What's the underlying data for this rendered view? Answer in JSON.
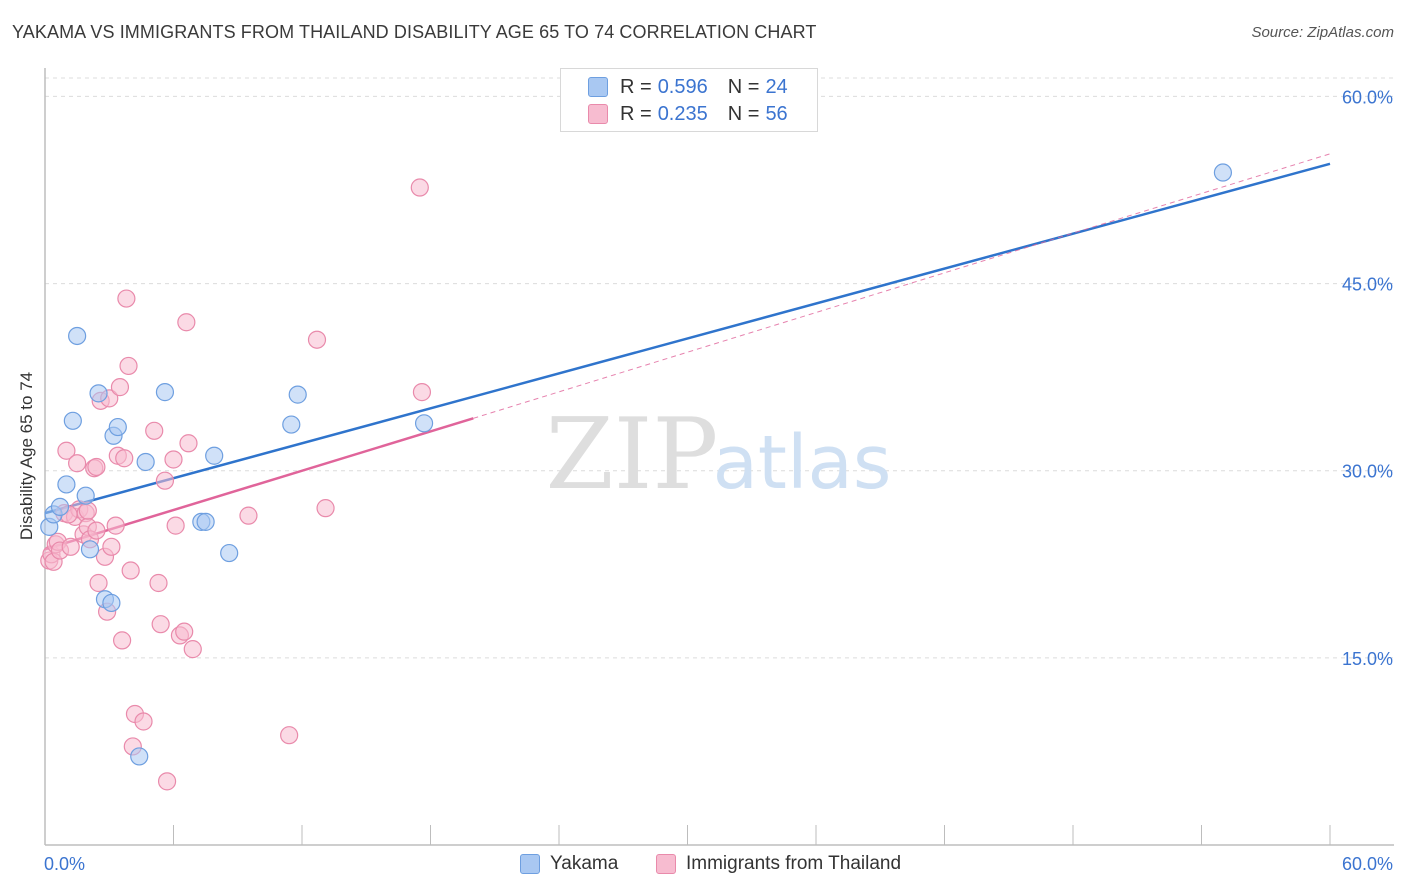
{
  "title": "YAKAMA VS IMMIGRANTS FROM THAILAND DISABILITY AGE 65 TO 74 CORRELATION CHART",
  "source": "Source: ZipAtlas.com",
  "watermark": {
    "zip": "ZIP",
    "atlas": "atlas"
  },
  "legend_top": [
    {
      "r_label": "R =",
      "r_value": "0.596",
      "n_label": "N =",
      "n_value": "24",
      "color": "#a9c8f2",
      "border": "#6e9fe0"
    },
    {
      "r_label": "R =",
      "r_value": "0.235",
      "n_label": "N =",
      "n_value": "56",
      "color": "#f7bcd0",
      "border": "#e98aab"
    }
  ],
  "legend_bottom": [
    {
      "label": "Yakama",
      "color": "#a9c8f2",
      "border": "#6e9fe0"
    },
    {
      "label": "Immigrants from Thailand",
      "color": "#f7bcd0",
      "border": "#e98aab"
    }
  ],
  "chart_data": {
    "type": "scatter",
    "title": "YAKAMA VS IMMIGRANTS FROM THAILAND DISABILITY AGE 65 TO 74 CORRELATION CHART",
    "xlabel": "",
    "ylabel": "Disability Age 65 to 74",
    "xlim": [
      0,
      60
    ],
    "ylim": [
      0,
      63
    ],
    "x_tick_labels": [
      "0.0%",
      "60.0%"
    ],
    "y_ticks": [
      15,
      30,
      45,
      60
    ],
    "y_tick_labels": [
      "15.0%",
      "30.0%",
      "45.0%",
      "60.0%"
    ],
    "grid": true,
    "series": [
      {
        "name": "Yakama",
        "color": "#a9c8f2",
        "stroke": "#6e9fe0",
        "line_color": "#2f74cc",
        "points": [
          [
            0.2,
            25.5
          ],
          [
            0.4,
            26.5
          ],
          [
            0.7,
            27.1
          ],
          [
            1.0,
            28.9
          ],
          [
            1.3,
            34.0
          ],
          [
            1.5,
            40.8
          ],
          [
            1.9,
            28.0
          ],
          [
            2.1,
            23.7
          ],
          [
            2.5,
            36.2
          ],
          [
            2.8,
            19.7
          ],
          [
            3.1,
            19.4
          ],
          [
            3.2,
            32.8
          ],
          [
            3.4,
            33.5
          ],
          [
            4.7,
            30.7
          ],
          [
            5.6,
            36.3
          ],
          [
            7.3,
            25.9
          ],
          [
            7.5,
            25.9
          ],
          [
            7.9,
            31.2
          ],
          [
            8.6,
            23.4
          ],
          [
            11.5,
            33.7
          ],
          [
            11.8,
            36.1
          ],
          [
            17.7,
            33.8
          ],
          [
            4.4,
            7.1
          ],
          [
            55.0,
            53.9
          ]
        ],
        "trend": {
          "x": [
            0,
            60
          ],
          "y": [
            26.6,
            54.6
          ]
        }
      },
      {
        "name": "Immigrants from Thailand",
        "color": "#f7bcd0",
        "stroke": "#e98aab",
        "line_color": "#e0649a",
        "points": [
          [
            0.2,
            22.8
          ],
          [
            0.3,
            23.3
          ],
          [
            0.4,
            22.7
          ],
          [
            0.5,
            24.1
          ],
          [
            0.6,
            24.3
          ],
          [
            0.7,
            23.6
          ],
          [
            0.9,
            26.6
          ],
          [
            1.0,
            31.6
          ],
          [
            1.2,
            23.9
          ],
          [
            1.4,
            26.3
          ],
          [
            1.5,
            30.6
          ],
          [
            1.6,
            26.9
          ],
          [
            1.8,
            24.9
          ],
          [
            1.9,
            26.6
          ],
          [
            2.0,
            25.5
          ],
          [
            2.1,
            24.5
          ],
          [
            2.3,
            30.2
          ],
          [
            2.4,
            25.2
          ],
          [
            2.4,
            30.3
          ],
          [
            2.5,
            21.0
          ],
          [
            2.6,
            35.6
          ],
          [
            2.8,
            23.1
          ],
          [
            2.9,
            18.7
          ],
          [
            3.0,
            35.8
          ],
          [
            3.1,
            23.9
          ],
          [
            3.3,
            25.6
          ],
          [
            3.4,
            31.2
          ],
          [
            3.5,
            36.7
          ],
          [
            3.6,
            16.4
          ],
          [
            3.7,
            31.0
          ],
          [
            3.8,
            43.8
          ],
          [
            3.9,
            38.4
          ],
          [
            4.0,
            22.0
          ],
          [
            4.1,
            7.9
          ],
          [
            4.2,
            10.5
          ],
          [
            4.6,
            9.9
          ],
          [
            5.1,
            33.2
          ],
          [
            5.3,
            21.0
          ],
          [
            5.4,
            17.7
          ],
          [
            5.6,
            29.2
          ],
          [
            5.7,
            5.1
          ],
          [
            6.0,
            30.9
          ],
          [
            6.1,
            25.6
          ],
          [
            6.3,
            16.8
          ],
          [
            6.5,
            17.1
          ],
          [
            6.7,
            32.2
          ],
          [
            6.6,
            41.9
          ],
          [
            6.9,
            15.7
          ],
          [
            9.5,
            26.4
          ],
          [
            11.4,
            8.8
          ],
          [
            12.7,
            40.5
          ],
          [
            13.1,
            27.0
          ],
          [
            17.6,
            36.3
          ],
          [
            17.5,
            52.7
          ],
          [
            2.0,
            26.8
          ],
          [
            1.1,
            26.5
          ]
        ],
        "trend": {
          "x": [
            0,
            20
          ],
          "y": [
            23.7,
            34.2
          ]
        },
        "trend_dashed": {
          "x": [
            20,
            60
          ],
          "y": [
            34.2,
            55.4
          ]
        }
      }
    ]
  }
}
